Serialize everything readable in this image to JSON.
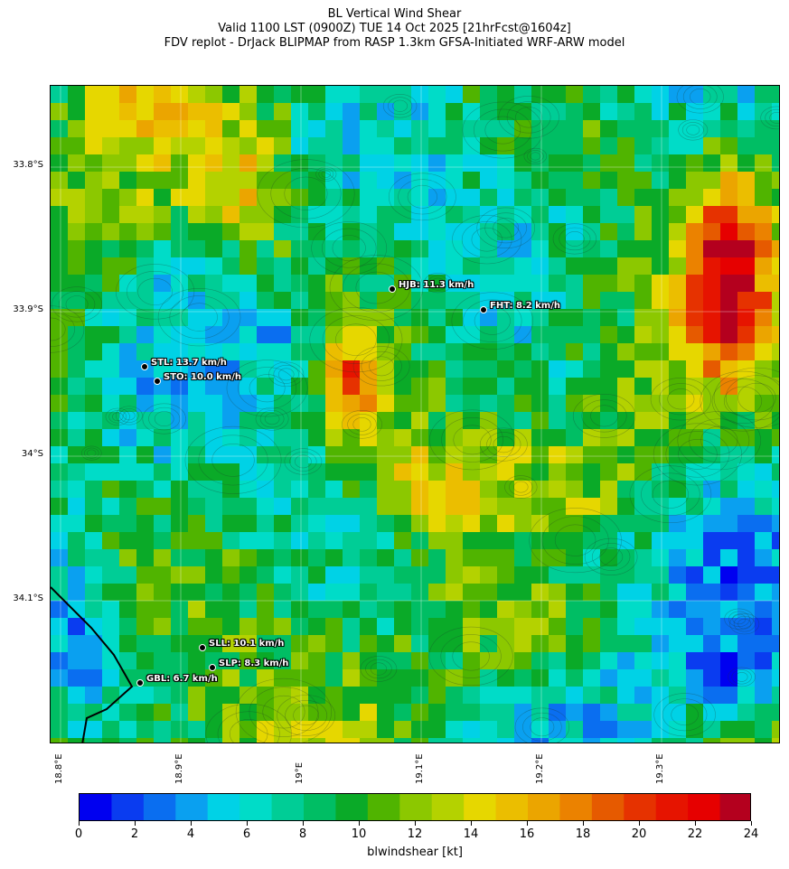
{
  "title": {
    "line1": "BL Vertical Wind Shear",
    "line2": "Valid 1100 LST (0900Z) TUE 14 Oct 2025 [21hrFcst@1604z]",
    "line3": "FDV replot - DrJack BLIPMAP from RASP 1.3km GFSA-Initiated WRF-ARW model"
  },
  "map": {
    "lat_ticks": [
      {
        "label": "33.8°S",
        "value": -33.8
      },
      {
        "label": "33.9°S",
        "value": -33.9
      },
      {
        "label": "34°S",
        "value": -34.0
      },
      {
        "label": "34.1°S",
        "value": -34.1
      }
    ],
    "lon_ticks": [
      {
        "label": "18.8°E",
        "value": 18.8
      },
      {
        "label": "18.9°E",
        "value": 18.9
      },
      {
        "label": "19°E",
        "value": 19.0
      },
      {
        "label": "19.1°E",
        "value": 19.1
      },
      {
        "label": "19.2°E",
        "value": 19.2
      },
      {
        "label": "19.3°E",
        "value": 19.3
      }
    ],
    "stations": [
      {
        "code": "HJB",
        "label": "HJB: 11.3 km/h",
        "value_kmh": 11.3
      },
      {
        "code": "FHT",
        "label": "FHT: 8.2 km/h",
        "value_kmh": 8.2
      },
      {
        "code": "STL",
        "label": "STL: 13.7 km/h",
        "value_kmh": 13.7
      },
      {
        "code": "STO",
        "label": "STO: 10.0 km/h",
        "value_kmh": 10.0
      },
      {
        "code": "SLL",
        "label": "SLL: 10.1 km/h",
        "value_kmh": 10.1
      },
      {
        "code": "SLP",
        "label": "SLP: 8.3 km/h",
        "value_kmh": 8.3
      },
      {
        "code": "GBL",
        "label": "GBL: 6.7 km/h",
        "value_kmh": 6.7
      }
    ]
  },
  "colorbar": {
    "label": "blwindshear [kt]",
    "min": 0,
    "max": 24,
    "tick_labels": [
      "0",
      "2",
      "4",
      "6",
      "8",
      "10",
      "12",
      "14",
      "16",
      "18",
      "20",
      "22",
      "24"
    ],
    "colors": [
      "#0000f0",
      "#0a3cf0",
      "#0a6ef0",
      "#0aa0f0",
      "#00d2e6",
      "#00dcc8",
      "#00cd96",
      "#00be64",
      "#0aaa28",
      "#50b400",
      "#8cc800",
      "#b4d200",
      "#e6d700",
      "#ebbe00",
      "#eba500",
      "#eb8200",
      "#e65a00",
      "#e63200",
      "#e61400",
      "#e60000",
      "#b4001e"
    ]
  }
}
